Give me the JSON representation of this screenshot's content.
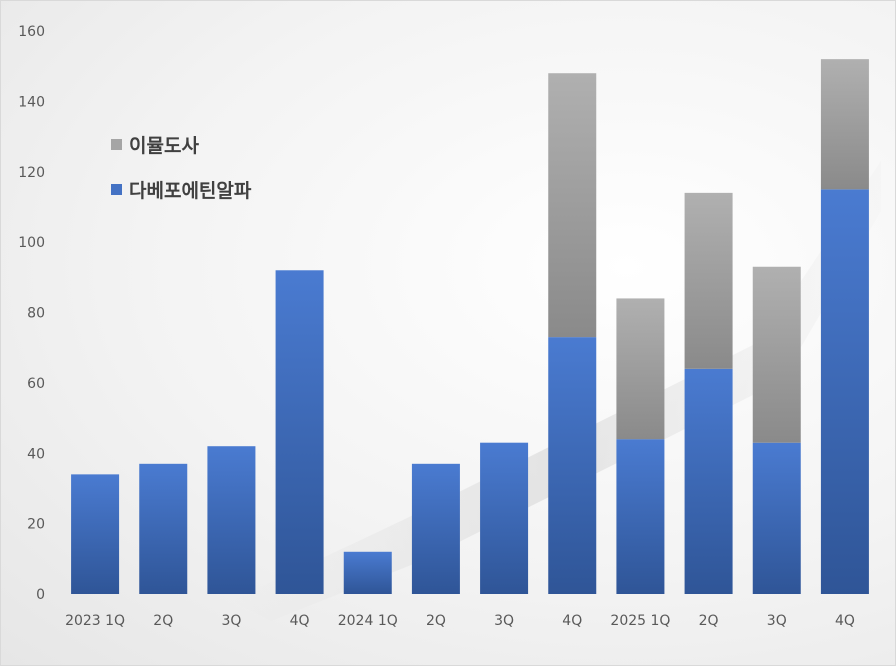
{
  "chart_data": {
    "type": "bar",
    "stacked": true,
    "categories": [
      "2023 1Q",
      "2Q",
      "3Q",
      "4Q",
      "2024 1Q",
      "2Q",
      "3Q",
      "4Q",
      "2025 1Q",
      "2Q",
      "3Q",
      "4Q"
    ],
    "series": [
      {
        "name": "다베포에틴알파",
        "color": "#4472c4",
        "values": [
          34,
          37,
          42,
          92,
          12,
          37,
          43,
          73,
          44,
          64,
          43,
          115
        ]
      },
      {
        "name": "이뮬도사",
        "color": "#a5a5a5",
        "values": [
          0,
          0,
          0,
          0,
          0,
          0,
          0,
          75,
          40,
          50,
          50,
          37
        ]
      }
    ],
    "ylim": [
      0,
      160
    ],
    "yticks": [
      "0",
      "20",
      "40",
      "60",
      "80",
      "100",
      "120",
      "140",
      "160"
    ],
    "grid": false,
    "legend": {
      "placement": "top-left"
    }
  }
}
